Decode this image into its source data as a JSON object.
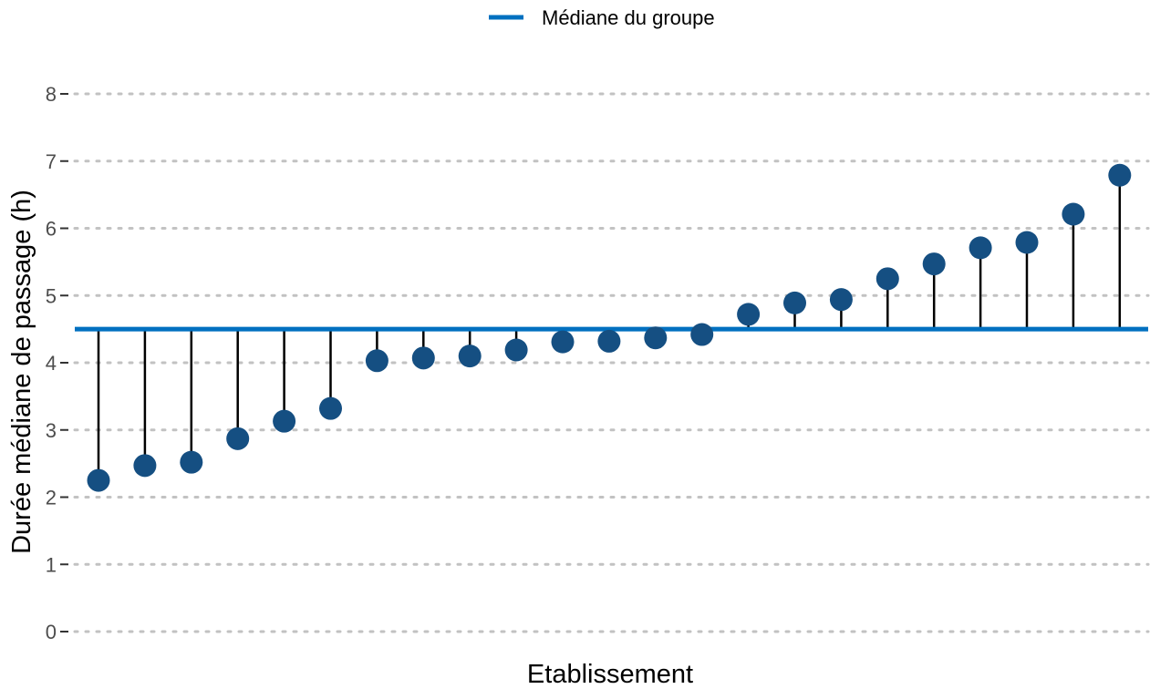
{
  "chart_data": {
    "type": "lollipop",
    "title": "",
    "xlabel": "Etablissement",
    "ylabel": "Durée médiane de passage (h)",
    "ylim": [
      0,
      8
    ],
    "yticks": [
      0,
      1,
      2,
      3,
      4,
      5,
      6,
      7,
      8
    ],
    "grid": "horizontal dotted",
    "legend_position": "top",
    "reference_line": {
      "label": "Médiane du groupe",
      "value": 4.5,
      "color": "#0070c0"
    },
    "point_color": "#154f82",
    "stem_color": "#000000",
    "values": [
      2.25,
      2.47,
      2.52,
      2.87,
      3.13,
      3.32,
      4.03,
      4.07,
      4.1,
      4.19,
      4.31,
      4.32,
      4.37,
      4.42,
      4.72,
      4.89,
      4.94,
      5.25,
      5.47,
      5.71,
      5.79,
      6.21,
      6.79
    ]
  }
}
